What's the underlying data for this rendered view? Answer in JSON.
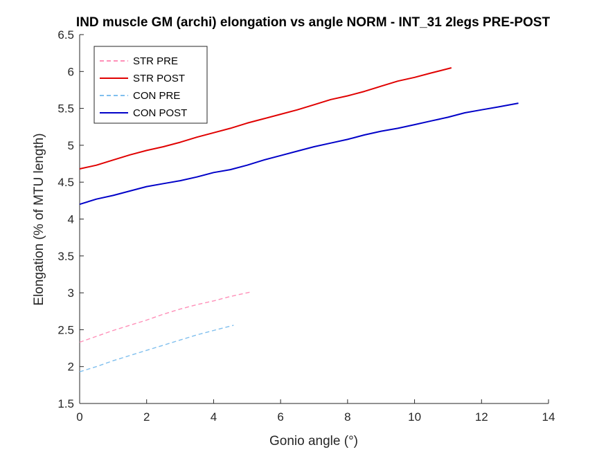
{
  "chart_data": {
    "type": "line",
    "title": "IND muscle GM (archi) elongation vs angle NORM - INT_31 2legs PRE-POST",
    "xlabel": "Gonio angle (°)",
    "ylabel": "Elongation (% of MTU length)",
    "xlim": [
      0,
      14
    ],
    "ylim": [
      1.5,
      6.5
    ],
    "xticks": [
      "0",
      "2",
      "4",
      "6",
      "8",
      "10",
      "12",
      "14"
    ],
    "yticks": [
      "1.5",
      "2",
      "2.5",
      "3",
      "3.5",
      "4",
      "4.5",
      "5",
      "5.5",
      "6",
      "6.5"
    ],
    "grid": false,
    "legend_position": "top-left",
    "series": [
      {
        "name": "STR PRE",
        "color": "#ff8fb8",
        "dash": true,
        "x": [
          0,
          0.5,
          1,
          1.5,
          2,
          2.5,
          3,
          3.5,
          4,
          4.5,
          5.1
        ],
        "y": [
          2.33,
          2.41,
          2.49,
          2.56,
          2.63,
          2.71,
          2.78,
          2.84,
          2.89,
          2.95,
          3.01
        ]
      },
      {
        "name": "STR POST",
        "color": "#e00000",
        "dash": false,
        "x": [
          0,
          0.5,
          1,
          1.5,
          2,
          2.5,
          3,
          3.5,
          4,
          4.5,
          5,
          5.5,
          6,
          6.5,
          7,
          7.5,
          8,
          8.5,
          9,
          9.5,
          10,
          10.5,
          11.1
        ],
        "y": [
          4.68,
          4.73,
          4.8,
          4.87,
          4.93,
          4.98,
          5.04,
          5.11,
          5.17,
          5.23,
          5.3,
          5.36,
          5.42,
          5.48,
          5.55,
          5.62,
          5.67,
          5.73,
          5.8,
          5.87,
          5.92,
          5.98,
          6.05
        ]
      },
      {
        "name": "CON PRE",
        "color": "#7fbfee",
        "dash": true,
        "x": [
          0,
          0.5,
          1,
          1.5,
          2,
          2.5,
          3,
          3.5,
          4,
          4.6
        ],
        "y": [
          1.93,
          2.0,
          2.08,
          2.15,
          2.22,
          2.29,
          2.36,
          2.43,
          2.49,
          2.56
        ]
      },
      {
        "name": "CON POST",
        "color": "#0000c8",
        "dash": false,
        "x": [
          0,
          0.5,
          1,
          1.5,
          2,
          2.5,
          3,
          3.5,
          4,
          4.5,
          5,
          5.5,
          6,
          6.5,
          7,
          7.5,
          8,
          8.5,
          9,
          9.5,
          10,
          10.5,
          11,
          11.5,
          12,
          12.5,
          13.1
        ],
        "y": [
          4.2,
          4.27,
          4.32,
          4.38,
          4.44,
          4.48,
          4.52,
          4.57,
          4.63,
          4.67,
          4.73,
          4.8,
          4.86,
          4.92,
          4.98,
          5.03,
          5.08,
          5.14,
          5.19,
          5.23,
          5.28,
          5.33,
          5.38,
          5.44,
          5.48,
          5.52,
          5.57
        ]
      }
    ]
  }
}
